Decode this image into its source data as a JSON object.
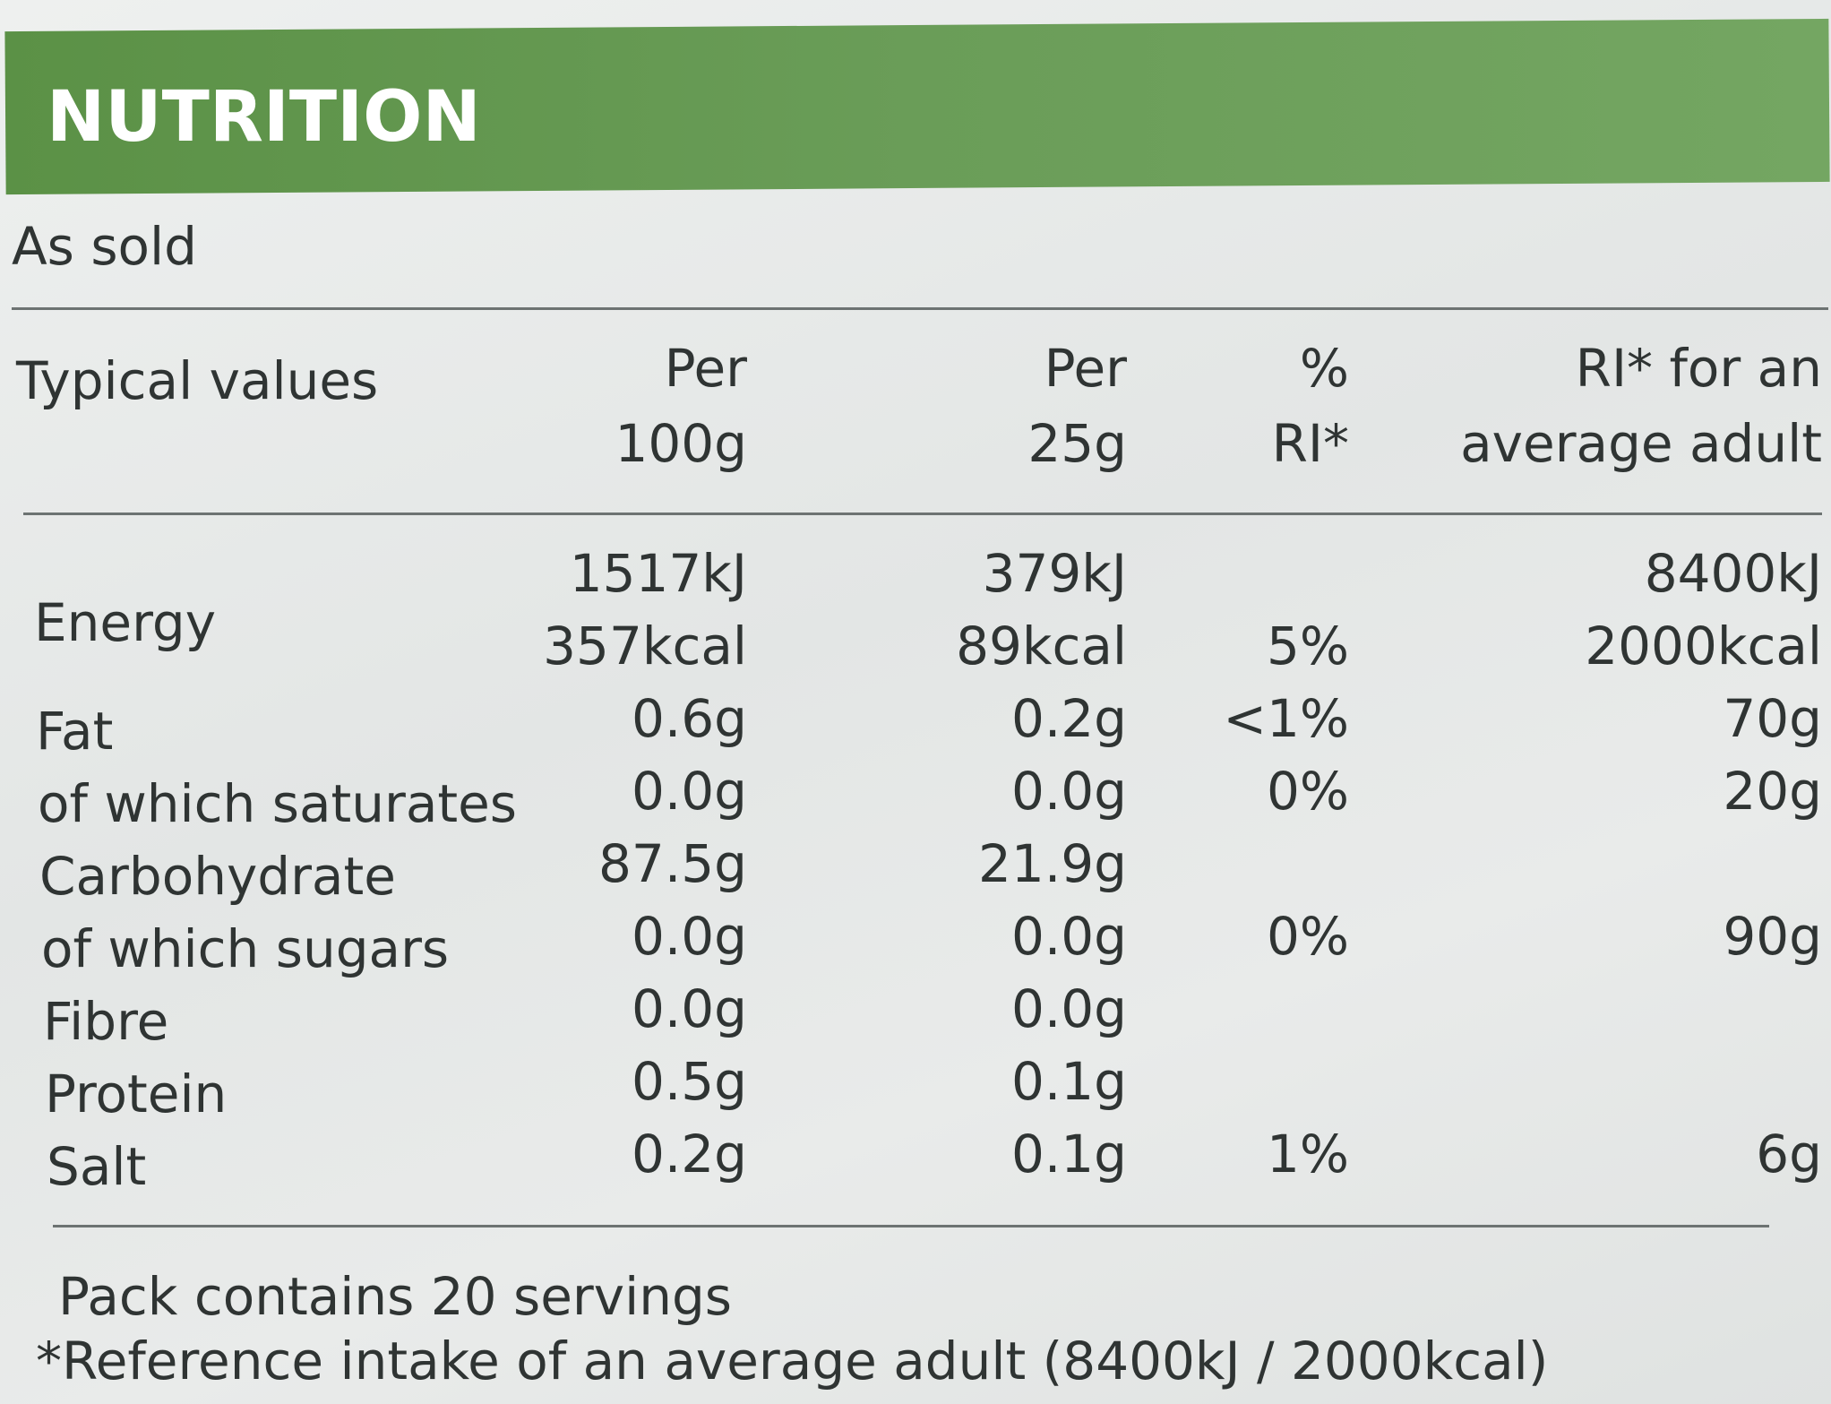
{
  "header": {
    "title": "NUTRITION",
    "subtitle": "As sold"
  },
  "table": {
    "columns": [
      [
        "Typical values"
      ],
      [
        "Per",
        "100g"
      ],
      [
        "Per",
        "25g"
      ],
      [
        "%",
        "RI*"
      ],
      [
        "RI* for an",
        "average adult"
      ]
    ],
    "rows": [
      [
        [
          "Energy"
        ],
        [
          "1517kJ",
          "357kcal"
        ],
        [
          "379kJ",
          "89kcal"
        ],
        [
          null,
          "5%"
        ],
        [
          "8400kJ",
          "2000kcal"
        ]
      ],
      [
        [
          "Fat"
        ],
        [
          "0.6g"
        ],
        [
          "0.2g"
        ],
        [
          "<1%"
        ],
        [
          "70g"
        ]
      ],
      [
        [
          "of which saturates"
        ],
        [
          "0.0g"
        ],
        [
          "0.0g"
        ],
        [
          "0%"
        ],
        [
          "20g"
        ]
      ],
      [
        [
          "Carbohydrate"
        ],
        [
          "87.5g"
        ],
        [
          "21.9g"
        ],
        [
          null
        ],
        [
          null
        ]
      ],
      [
        [
          "of which sugars"
        ],
        [
          "0.0g"
        ],
        [
          "0.0g"
        ],
        [
          "0%"
        ],
        [
          "90g"
        ]
      ],
      [
        [
          "Fibre"
        ],
        [
          "0.0g"
        ],
        [
          "0.0g"
        ],
        [
          null
        ],
        [
          null
        ]
      ],
      [
        [
          "Protein"
        ],
        [
          "0.5g"
        ],
        [
          "0.1g"
        ],
        [
          null
        ],
        [
          null
        ]
      ],
      [
        [
          "Salt"
        ],
        [
          "0.2g"
        ],
        [
          "0.1g"
        ],
        [
          "1%"
        ],
        [
          "6g"
        ]
      ]
    ]
  },
  "footer": {
    "servings": "Pack contains 20 servings",
    "note": "*Reference intake of an average adult (8400kJ / 2000kcal)"
  }
}
